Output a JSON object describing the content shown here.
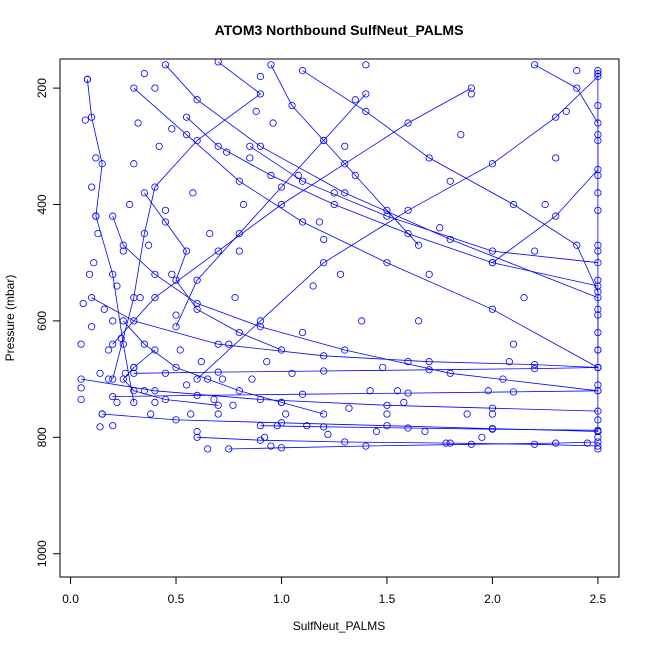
{
  "chart_data": {
    "type": "scatter",
    "title": "ATOM3 Northbound SulfNeut_PALMS",
    "xlabel": "SulfNeut_PALMS",
    "ylabel": "Pressure (mbar)",
    "xlim": [
      -0.05,
      2.6
    ],
    "ylim": [
      1040,
      150
    ],
    "y_reversed": true,
    "x_ticks": [
      "0.0",
      "0.5",
      "1.0",
      "1.5",
      "2.0",
      "2.5"
    ],
    "y_ticks": [
      "200",
      "400",
      "600",
      "800",
      "1000"
    ],
    "series_color": "#0000ff",
    "marker": "open-circle",
    "connected_lines": true,
    "x_saturation": 2.5,
    "profiles": [
      {
        "x": [
          0.08,
          0.1,
          0.15,
          0.12,
          0.2,
          0.25,
          0.3
        ],
        "y": [
          185,
          250,
          330,
          420,
          520,
          640,
          740
        ]
      },
      {
        "x": [
          0.45,
          0.6,
          0.9,
          1.3,
          1.8,
          2.5,
          2.5
        ],
        "y": [
          160,
          220,
          300,
          380,
          460,
          560,
          620
        ]
      },
      {
        "x": [
          0.3,
          0.55,
          0.8,
          1.1,
          1.5,
          2.0,
          2.5
        ],
        "y": [
          200,
          280,
          360,
          430,
          500,
          580,
          680
        ]
      },
      {
        "x": [
          0.7,
          0.9,
          0.6,
          0.4,
          0.35,
          0.3,
          0.2
        ],
        "y": [
          155,
          210,
          290,
          370,
          450,
          560,
          700
        ]
      },
      {
        "x": [
          1.1,
          1.4,
          1.7,
          2.1,
          2.4,
          2.5,
          2.5
        ],
        "y": [
          170,
          240,
          320,
          400,
          470,
          550,
          650
        ]
      },
      {
        "x": [
          2.5,
          2.3,
          2.0,
          1.6,
          1.2,
          0.9,
          0.6
        ],
        "y": [
          180,
          250,
          330,
          410,
          500,
          600,
          700
        ]
      },
      {
        "x": [
          0.2,
          0.25,
          0.4,
          0.6,
          0.9,
          1.3,
          1.8,
          2.5
        ],
        "y": [
          420,
          470,
          520,
          570,
          610,
          650,
          690,
          720
        ]
      },
      {
        "x": [
          0.1,
          0.3,
          0.7,
          1.2,
          1.7,
          2.2,
          2.5
        ],
        "y": [
          560,
          600,
          640,
          660,
          670,
          675,
          680
        ]
      },
      {
        "x": [
          0.05,
          0.4,
          0.9,
          1.5,
          2.0,
          2.5
        ],
        "y": [
          700,
          720,
          735,
          745,
          750,
          755
        ]
      },
      {
        "x": [
          0.15,
          0.5,
          1.0,
          1.5,
          2.0,
          2.5
        ],
        "y": [
          760,
          770,
          775,
          780,
          785,
          790
        ]
      },
      {
        "x": [
          0.6,
          0.9,
          1.3,
          1.8,
          2.2,
          2.5
        ],
        "y": [
          800,
          805,
          808,
          810,
          812,
          815
        ]
      },
      {
        "x": [
          0.75,
          1.0,
          1.4,
          1.9,
          2.3,
          2.5
        ],
        "y": [
          820,
          818,
          815,
          812,
          810,
          808
        ]
      },
      {
        "x": [
          0.35,
          0.45,
          0.55,
          0.5,
          0.6,
          0.8,
          1.0
        ],
        "y": [
          380,
          430,
          480,
          530,
          580,
          620,
          650
        ]
      },
      {
        "x": [
          1.9,
          1.6,
          1.3,
          1.0,
          0.7,
          0.4,
          0.2
        ],
        "y": [
          200,
          260,
          330,
          400,
          480,
          560,
          640
        ]
      },
      {
        "x": [
          0.95,
          1.05,
          1.2,
          1.35,
          1.5,
          1.65
        ],
        "y": [
          160,
          230,
          290,
          350,
          410,
          470
        ]
      },
      {
        "x": [
          0.25,
          0.35,
          0.5,
          0.65,
          0.8,
          1.0,
          1.2
        ],
        "y": [
          600,
          640,
          680,
          700,
          720,
          740,
          760
        ]
      },
      {
        "x": [
          2.5,
          2.5,
          2.5,
          2.5,
          2.5,
          2.5,
          2.5
        ],
        "y": [
          170,
          280,
          380,
          480,
          580,
          680,
          790
        ]
      },
      {
        "x": [
          0.55,
          0.7,
          0.95,
          1.25,
          1.6,
          2.0,
          2.5
        ],
        "y": [
          250,
          300,
          350,
          400,
          450,
          500,
          540
        ]
      },
      {
        "x": [
          0.4,
          0.3,
          0.25,
          0.3,
          0.45,
          0.7
        ],
        "y": [
          650,
          680,
          700,
          720,
          735,
          745
        ]
      },
      {
        "x": [
          1.4,
          1.2,
          1.0,
          0.8,
          0.6,
          0.5
        ],
        "y": [
          210,
          290,
          370,
          450,
          530,
          610
        ]
      },
      {
        "x": [
          0.85,
          1.1,
          1.5,
          2.0,
          2.5
        ],
        "y": [
          300,
          360,
          420,
          480,
          500
        ]
      },
      {
        "x": [
          0.2,
          0.6,
          1.1,
          1.6,
          2.1,
          2.5
        ],
        "y": [
          730,
          728,
          726,
          724,
          722,
          720
        ]
      },
      {
        "x": [
          0.3,
          0.7,
          1.2,
          1.7,
          2.2,
          2.5
        ],
        "y": [
          690,
          688,
          686,
          684,
          682,
          680
        ]
      },
      {
        "x": [
          0.9,
          1.2,
          1.6,
          2.0,
          2.5
        ],
        "y": [
          780,
          782,
          784,
          786,
          788
        ]
      },
      {
        "x": [
          2.2,
          2.4,
          2.5,
          2.5,
          2.3,
          2.0
        ],
        "y": [
          160,
          200,
          260,
          340,
          420,
          500
        ]
      }
    ],
    "points": [
      [
        0.08,
        185
      ],
      [
        0.07,
        255
      ],
      [
        0.12,
        320
      ],
      [
        0.1,
        370
      ],
      [
        0.13,
        450
      ],
      [
        0.09,
        520
      ],
      [
        0.06,
        570
      ],
      [
        0.05,
        640
      ],
      [
        0.05,
        715
      ],
      [
        0.05,
        735
      ],
      [
        0.14,
        782
      ],
      [
        0.15,
        760
      ],
      [
        0.18,
        700
      ],
      [
        0.2,
        600
      ],
      [
        0.22,
        540
      ],
      [
        0.25,
        480
      ],
      [
        0.28,
        400
      ],
      [
        0.3,
        330
      ],
      [
        0.32,
        260
      ],
      [
        0.35,
        175
      ],
      [
        0.4,
        200
      ],
      [
        0.42,
        300
      ],
      [
        0.45,
        410
      ],
      [
        0.48,
        520
      ],
      [
        0.5,
        590
      ],
      [
        0.52,
        650
      ],
      [
        0.55,
        710
      ],
      [
        0.57,
        760
      ],
      [
        0.6,
        790
      ],
      [
        0.65,
        820
      ],
      [
        0.7,
        760
      ],
      [
        0.72,
        700
      ],
      [
        0.75,
        640
      ],
      [
        0.78,
        560
      ],
      [
        0.8,
        480
      ],
      [
        0.82,
        400
      ],
      [
        0.85,
        320
      ],
      [
        0.88,
        240
      ],
      [
        0.9,
        180
      ],
      [
        0.92,
        800
      ],
      [
        0.95,
        815
      ],
      [
        0.98,
        780
      ],
      [
        1.0,
        740
      ],
      [
        1.05,
        690
      ],
      [
        1.1,
        620
      ],
      [
        1.15,
        540
      ],
      [
        1.2,
        460
      ],
      [
        1.25,
        380
      ],
      [
        1.3,
        300
      ],
      [
        1.35,
        220
      ],
      [
        1.4,
        160
      ],
      [
        1.45,
        790
      ],
      [
        1.5,
        760
      ],
      [
        1.55,
        720
      ],
      [
        1.6,
        670
      ],
      [
        1.65,
        600
      ],
      [
        1.7,
        520
      ],
      [
        1.75,
        440
      ],
      [
        1.8,
        360
      ],
      [
        1.85,
        280
      ],
      [
        1.9,
        210
      ],
      [
        1.95,
        800
      ],
      [
        2.0,
        760
      ],
      [
        2.05,
        700
      ],
      [
        2.1,
        640
      ],
      [
        2.15,
        560
      ],
      [
        2.2,
        480
      ],
      [
        2.25,
        400
      ],
      [
        2.3,
        320
      ],
      [
        2.35,
        240
      ],
      [
        2.4,
        170
      ],
      [
        2.45,
        810
      ],
      [
        2.5,
        175
      ],
      [
        2.5,
        230
      ],
      [
        2.5,
        290
      ],
      [
        2.5,
        350
      ],
      [
        2.5,
        410
      ],
      [
        2.5,
        470
      ],
      [
        2.5,
        530
      ],
      [
        2.5,
        590
      ],
      [
        2.5,
        650
      ],
      [
        2.5,
        710
      ],
      [
        2.5,
        770
      ],
      [
        2.5,
        800
      ],
      [
        2.5,
        820
      ],
      [
        0.3,
        680
      ],
      [
        0.35,
        720
      ],
      [
        0.4,
        740
      ],
      [
        0.45,
        690
      ],
      [
        0.38,
        760
      ],
      [
        0.26,
        690
      ],
      [
        0.22,
        740
      ],
      [
        0.18,
        650
      ],
      [
        0.16,
        580
      ],
      [
        0.62,
        670
      ],
      [
        0.68,
        735
      ],
      [
        0.77,
        745
      ],
      [
        0.86,
        700
      ],
      [
        0.93,
        670
      ],
      [
        1.02,
        760
      ],
      [
        1.12,
        780
      ],
      [
        1.22,
        795
      ],
      [
        1.32,
        750
      ],
      [
        1.42,
        720
      ],
      [
        0.66,
        450
      ],
      [
        0.58,
        380
      ],
      [
        0.48,
        270
      ],
      [
        0.74,
        310
      ],
      [
        0.96,
        260
      ],
      [
        1.08,
        350
      ],
      [
        1.18,
        430
      ],
      [
        1.28,
        520
      ],
      [
        1.38,
        600
      ],
      [
        1.48,
        680
      ],
      [
        1.58,
        740
      ],
      [
        1.68,
        790
      ],
      [
        1.78,
        810
      ],
      [
        1.88,
        760
      ],
      [
        1.98,
        720
      ],
      [
        2.08,
        670
      ],
      [
        0.12,
        420
      ],
      [
        0.11,
        500
      ],
      [
        0.1,
        610
      ],
      [
        0.14,
        690
      ],
      [
        0.2,
        780
      ],
      [
        0.24,
        630
      ],
      [
        0.33,
        560
      ],
      [
        0.37,
        470
      ]
    ]
  }
}
